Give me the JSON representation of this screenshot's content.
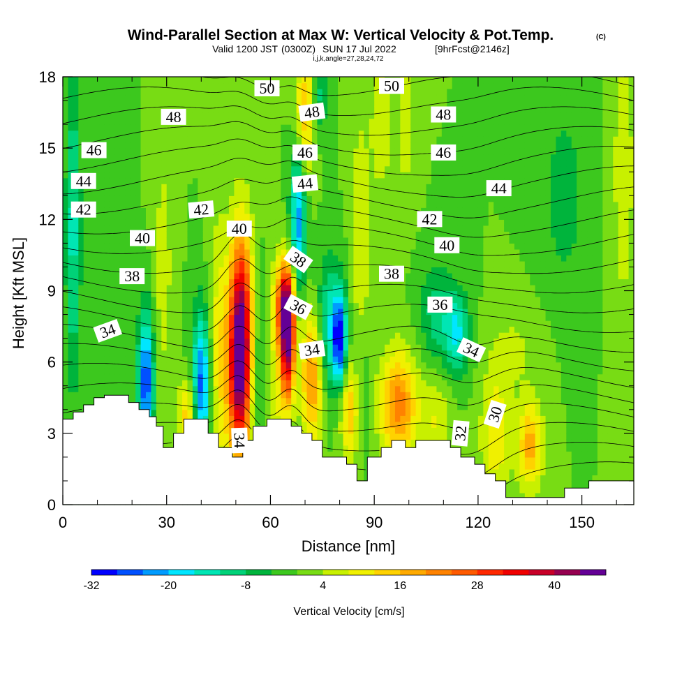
{
  "chart_data": {
    "type": "heatmap",
    "title": "Wind-Parallel Section at Max W: Vertical Velocity & Pot.Temp.",
    "title_mark": "(C)",
    "subtitle": {
      "valid": "Valid 1200 JST",
      "utc": "(0300Z)",
      "date": "SUN 17 Jul 2022",
      "fcst": "[9hrFcst@2146z]"
    },
    "subtitle2": "i,j,k,angle=27,28,24,72",
    "xlabel": "Distance [nm]",
    "ylabel": "Height [Kft MSL]",
    "xlim": [
      0,
      165
    ],
    "ylim": [
      0,
      18
    ],
    "xticks": [
      0,
      30,
      60,
      90,
      120,
      150
    ],
    "yticks": [
      0,
      3,
      6,
      9,
      12,
      15,
      18
    ],
    "colorbar": {
      "label": "Vertical Velocity [cm/s]",
      "tick_labels": [
        "-32",
        "-20",
        "-8",
        "4",
        "16",
        "28",
        "40"
      ],
      "tick_values": [
        -32,
        -20,
        -8,
        4,
        16,
        28,
        40
      ],
      "levels": [
        -32,
        -28,
        -24,
        -20,
        -16,
        -12,
        -8,
        -4,
        0,
        4,
        8,
        12,
        16,
        20,
        24,
        28,
        32,
        36,
        40,
        44,
        48
      ],
      "colors": [
        "#0000ff",
        "#0050ff",
        "#009bff",
        "#00e6ff",
        "#00e6b4",
        "#00d278",
        "#00b43c",
        "#3cc81e",
        "#78dc14",
        "#c8f000",
        "#f0f000",
        "#ffd200",
        "#ffaa00",
        "#ff8200",
        "#ff5a00",
        "#ff2800",
        "#f00000",
        "#c80028",
        "#960050",
        "#640096"
      ]
    },
    "background_w": 0,
    "w_features": [
      {
        "x": 3,
        "z": 11.5,
        "w": -14,
        "sx": 1.5,
        "sz": 4.5
      },
      {
        "x": 16,
        "z": 10.5,
        "w": -4,
        "sx": 2.5,
        "sz": 3.0
      },
      {
        "x": 24,
        "z": 5.2,
        "w": -28,
        "sx": 1.6,
        "sz": 2.0
      },
      {
        "x": 29,
        "z": 10.0,
        "w": 6,
        "sx": 2.0,
        "sz": 4.0
      },
      {
        "x": 40,
        "z": 5.0,
        "w": -26,
        "sx": 1.8,
        "sz": 2.2
      },
      {
        "x": 36,
        "z": 3.8,
        "w": 14,
        "sx": 2.0,
        "sz": 1.0
      },
      {
        "x": 45,
        "z": 6.5,
        "w": 10,
        "sx": 2.0,
        "sz": 4.0
      },
      {
        "x": 51.5,
        "z": 8.0,
        "w": 34,
        "sx": 2.3,
        "sz": 2.8
      },
      {
        "x": 51,
        "z": 5.0,
        "w": 30,
        "sx": 2.5,
        "sz": 2.5
      },
      {
        "x": 56,
        "z": 5.0,
        "w": -8,
        "sx": 2.0,
        "sz": 3.0
      },
      {
        "x": 62,
        "z": 5.5,
        "w": 8,
        "sx": 2.0,
        "sz": 3.0
      },
      {
        "x": 65,
        "z": 7.0,
        "w": 44,
        "sx": 1.4,
        "sz": 1.8
      },
      {
        "x": 64,
        "z": 8.5,
        "w": 24,
        "sx": 2.0,
        "sz": 1.2
      },
      {
        "x": 68,
        "z": 12.0,
        "w": -22,
        "sx": 1.6,
        "sz": 2.2
      },
      {
        "x": 70,
        "z": 16.5,
        "w": 16,
        "sx": 2.0,
        "sz": 2.0
      },
      {
        "x": 74,
        "z": 17.2,
        "w": -10,
        "sx": 1.6,
        "sz": 1.2
      },
      {
        "x": 72,
        "z": 5.5,
        "w": 22,
        "sx": 2.2,
        "sz": 2.0
      },
      {
        "x": 77,
        "z": 7.5,
        "w": -14,
        "sx": 3.0,
        "sz": 2.0
      },
      {
        "x": 80,
        "z": 7.0,
        "w": -26,
        "sx": 1.4,
        "sz": 1.3
      },
      {
        "x": 83,
        "z": 4.0,
        "w": 16,
        "sx": 2.0,
        "sz": 1.5
      },
      {
        "x": 86,
        "z": 11.0,
        "w": 8,
        "sx": 2.0,
        "sz": 4.0
      },
      {
        "x": 86,
        "z": 5.0,
        "w": -6,
        "sx": 2.0,
        "sz": 2.0
      },
      {
        "x": 97,
        "z": 4.2,
        "w": 22,
        "sx": 3.8,
        "sz": 1.6
      },
      {
        "x": 92,
        "z": 16.0,
        "w": 8,
        "sx": 2.0,
        "sz": 2.0
      },
      {
        "x": 99,
        "z": 16.0,
        "w": 6,
        "sx": 2.0,
        "sz": 2.5
      },
      {
        "x": 108,
        "z": 8.0,
        "w": -10,
        "sx": 3.5,
        "sz": 1.5
      },
      {
        "x": 114,
        "z": 7.2,
        "w": -16,
        "sx": 2.5,
        "sz": 1.2
      },
      {
        "x": 108,
        "z": 3.5,
        "w": 8,
        "sx": 3.0,
        "sz": 1.5
      },
      {
        "x": 125,
        "z": 3.0,
        "w": 12,
        "sx": 3.0,
        "sz": 1.8
      },
      {
        "x": 135,
        "z": 2.5,
        "w": 18,
        "sx": 2.5,
        "sz": 1.3
      },
      {
        "x": 162,
        "z": 14.0,
        "w": 8,
        "sx": 2.0,
        "sz": 4.0
      },
      {
        "x": 145,
        "z": 13.0,
        "w": -7,
        "sx": 4.0,
        "sz": 2.5
      },
      {
        "x": 130,
        "z": 6.5,
        "w": 5,
        "sx": 5.0,
        "sz": 1.2
      }
    ],
    "terrain": [
      [
        0,
        3.6
      ],
      [
        3,
        3.6
      ],
      [
        3,
        3.9
      ],
      [
        6,
        3.9
      ],
      [
        6,
        4.2
      ],
      [
        9,
        4.2
      ],
      [
        9,
        4.5
      ],
      [
        12,
        4.5
      ],
      [
        12,
        4.6
      ],
      [
        19,
        4.6
      ],
      [
        19,
        4.3
      ],
      [
        22,
        4.3
      ],
      [
        22,
        4.0
      ],
      [
        25,
        4.0
      ],
      [
        25,
        3.7
      ],
      [
        27,
        3.7
      ],
      [
        27,
        3.3
      ],
      [
        29,
        3.3
      ],
      [
        29,
        2.4
      ],
      [
        32,
        2.4
      ],
      [
        32,
        3.0
      ],
      [
        35,
        3.0
      ],
      [
        35,
        3.6
      ],
      [
        42,
        3.6
      ],
      [
        42,
        3.0
      ],
      [
        45,
        3.0
      ],
      [
        45,
        2.4
      ],
      [
        49,
        2.4
      ],
      [
        49,
        2.0
      ],
      [
        52,
        2.0
      ],
      [
        52,
        2.7
      ],
      [
        55,
        2.7
      ],
      [
        55,
        3.3
      ],
      [
        59,
        3.3
      ],
      [
        59,
        3.6
      ],
      [
        66,
        3.6
      ],
      [
        66,
        3.3
      ],
      [
        69,
        3.3
      ],
      [
        69,
        3.0
      ],
      [
        72,
        3.0
      ],
      [
        72,
        2.7
      ],
      [
        75,
        2.7
      ],
      [
        75,
        2.0
      ],
      [
        82,
        2.0
      ],
      [
        82,
        1.7
      ],
      [
        85,
        1.7
      ],
      [
        85,
        1.0
      ],
      [
        88,
        1.0
      ],
      [
        88,
        2.0
      ],
      [
        92,
        2.0
      ],
      [
        92,
        2.4
      ],
      [
        95,
        2.4
      ],
      [
        95,
        2.7
      ],
      [
        99,
        2.7
      ],
      [
        99,
        2.4
      ],
      [
        102,
        2.4
      ],
      [
        102,
        2.7
      ],
      [
        112,
        2.7
      ],
      [
        112,
        2.4
      ],
      [
        115,
        2.4
      ],
      [
        115,
        2.0
      ],
      [
        119,
        2.0
      ],
      [
        119,
        1.7
      ],
      [
        122,
        1.7
      ],
      [
        122,
        1.3
      ],
      [
        125,
        1.3
      ],
      [
        125,
        1.0
      ],
      [
        128,
        1.0
      ],
      [
        128,
        0.3
      ],
      [
        145,
        0.3
      ],
      [
        145,
        0.7
      ],
      [
        152,
        0.7
      ],
      [
        152,
        1.0
      ],
      [
        165,
        1.0
      ]
    ],
    "theta_contours": [
      {
        "value": 50,
        "labels": [
          {
            "text": "50",
            "x": 59,
            "z": 17.5,
            "rot": 0
          },
          {
            "text": "50",
            "x": 95,
            "z": 17.6,
            "rot": 0
          }
        ]
      },
      {
        "value": 48,
        "labels": [
          {
            "text": "48",
            "x": 32,
            "z": 16.3,
            "rot": 0
          },
          {
            "text": "48",
            "x": 72,
            "z": 16.5,
            "rot": -8
          },
          {
            "text": "48",
            "x": 110,
            "z": 16.4,
            "rot": 0
          }
        ]
      },
      {
        "value": 46,
        "labels": [
          {
            "text": "46",
            "x": 9,
            "z": 14.9,
            "rot": 0
          },
          {
            "text": "46",
            "x": 70,
            "z": 14.8,
            "rot": 0
          },
          {
            "text": "46",
            "x": 110,
            "z": 14.8,
            "rot": 0
          }
        ]
      },
      {
        "value": 44,
        "labels": [
          {
            "text": "44",
            "x": 6,
            "z": 13.6,
            "rot": 0
          },
          {
            "text": "44",
            "x": 70,
            "z": 13.5,
            "rot": -6
          },
          {
            "text": "44",
            "x": 126,
            "z": 13.3,
            "rot": 0
          }
        ]
      },
      {
        "value": 42,
        "labels": [
          {
            "text": "42",
            "x": 6,
            "z": 12.4,
            "rot": 0
          },
          {
            "text": "42",
            "x": 40,
            "z": 12.4,
            "rot": -5
          },
          {
            "text": "42",
            "x": 106,
            "z": 12.0,
            "rot": 0
          }
        ]
      },
      {
        "value": 40,
        "labels": [
          {
            "text": "40",
            "x": 23,
            "z": 11.2,
            "rot": 0
          },
          {
            "text": "40",
            "x": 51,
            "z": 11.6,
            "rot": 0
          },
          {
            "text": "40",
            "x": 111,
            "z": 10.9,
            "rot": 0
          }
        ]
      },
      {
        "value": 38,
        "labels": [
          {
            "text": "38",
            "x": 20,
            "z": 9.6,
            "rot": 0
          },
          {
            "text": "38",
            "x": 68,
            "z": 10.3,
            "rot": 35
          },
          {
            "text": "38",
            "x": 95,
            "z": 9.7,
            "rot": 0
          }
        ]
      },
      {
        "value": 36,
        "labels": [
          {
            "text": "36",
            "x": 68,
            "z": 8.3,
            "rot": 28
          },
          {
            "text": "36",
            "x": 109,
            "z": 8.4,
            "rot": 0
          }
        ]
      },
      {
        "value": 34,
        "labels": [
          {
            "text": "34",
            "x": 13,
            "z": 7.3,
            "rot": -20
          },
          {
            "text": "34",
            "x": 72,
            "z": 6.5,
            "rot": -8
          },
          {
            "text": "34",
            "x": 118,
            "z": 6.5,
            "rot": 25
          },
          {
            "text": "34",
            "x": 51,
            "z": 2.7,
            "rot": 88
          }
        ]
      },
      {
        "value": 32,
        "labels": [
          {
            "text": "32",
            "x": 115,
            "z": 3.0,
            "rot": -85
          }
        ]
      },
      {
        "value": 30,
        "labels": [
          {
            "text": "30",
            "x": 125,
            "z": 3.8,
            "rot": -72
          }
        ]
      }
    ]
  }
}
